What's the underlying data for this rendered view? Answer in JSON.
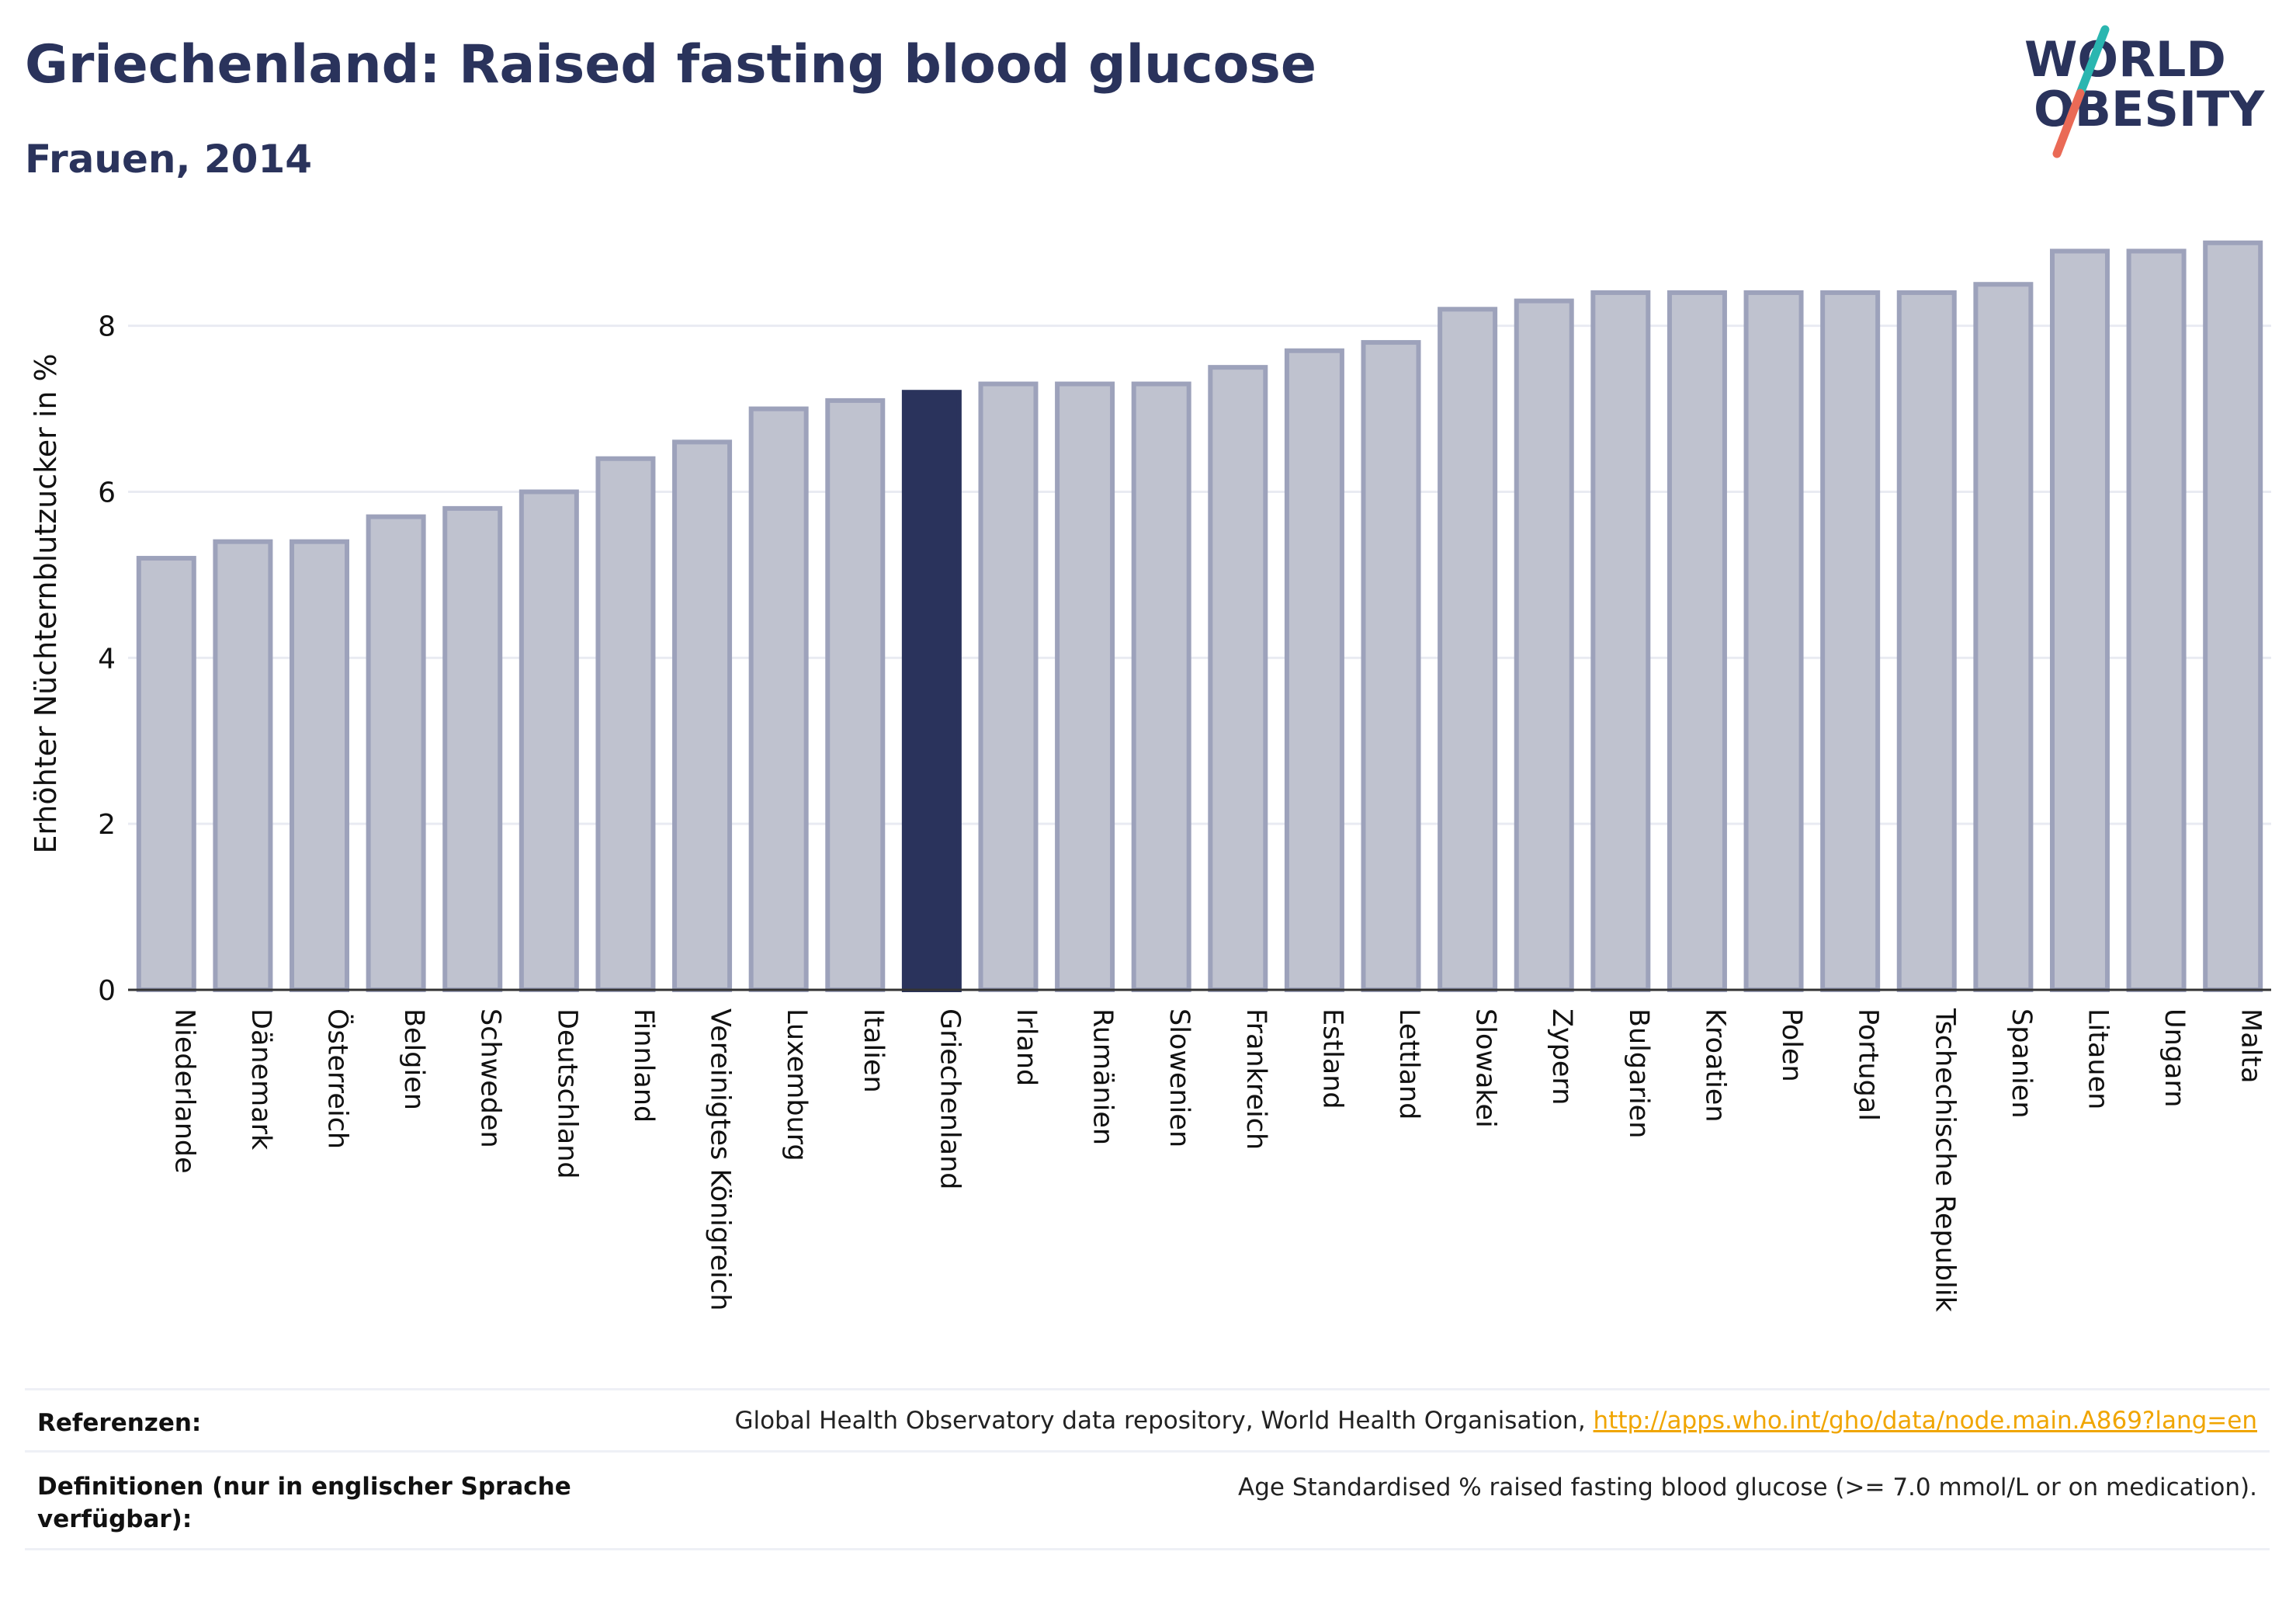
{
  "header": {
    "title": "Griechenland: Raised fasting blood glucose",
    "subtitle": "Frauen, 2014"
  },
  "logo": {
    "line1": "WORLD",
    "line2": "OBESITY",
    "accent_teal": "#2ab6b0",
    "accent_coral": "#ea6a56",
    "text_color": "#2a335c"
  },
  "chart_data": {
    "type": "bar",
    "title": "",
    "xlabel": "",
    "ylabel": "Erhöhter Nüchternblutzucker in %",
    "ylim": [
      0,
      9.4
    ],
    "yticks": [
      0,
      2,
      4,
      6,
      8
    ],
    "grid": true,
    "highlight": "Griechenland",
    "colors": {
      "bar": "#bfc2cf",
      "bar_edge": "#9da2bb",
      "highlight": "#2a335c"
    },
    "categories": [
      "Niederlande",
      "Dänemark",
      "Österreich",
      "Belgien",
      "Schweden",
      "Deutschland",
      "Finnland",
      "Vereinigtes Königreich",
      "Luxemburg",
      "Italien",
      "Griechenland",
      "Irland",
      "Rumänien",
      "Slowenien",
      "Frankreich",
      "Estland",
      "Lettland",
      "Slowakei",
      "Zypern",
      "Bulgarien",
      "Kroatien",
      "Polen",
      "Portugal",
      "Tschechische Republik",
      "Spanien",
      "Litauen",
      "Ungarn",
      "Malta"
    ],
    "values": [
      5.2,
      5.4,
      5.4,
      5.7,
      5.8,
      6.0,
      6.4,
      6.6,
      7.0,
      7.1,
      7.2,
      7.3,
      7.3,
      7.3,
      7.5,
      7.7,
      7.8,
      8.2,
      8.3,
      8.4,
      8.4,
      8.4,
      8.4,
      8.4,
      8.5,
      8.9,
      8.9,
      9.0
    ]
  },
  "footer": {
    "references_label": "Referenzen:",
    "references_text": "Global Health Observatory data repository, World Health Organisation, ",
    "references_link": "http://apps.who.int/gho/data/node.main.A869?lang=en",
    "definitions_label": "Definitionen (nur in englischer Sprache verfügbar):",
    "definitions_text": "Age Standardised % raised fasting blood glucose (>= 7.0 mmol/L or on medication)."
  }
}
